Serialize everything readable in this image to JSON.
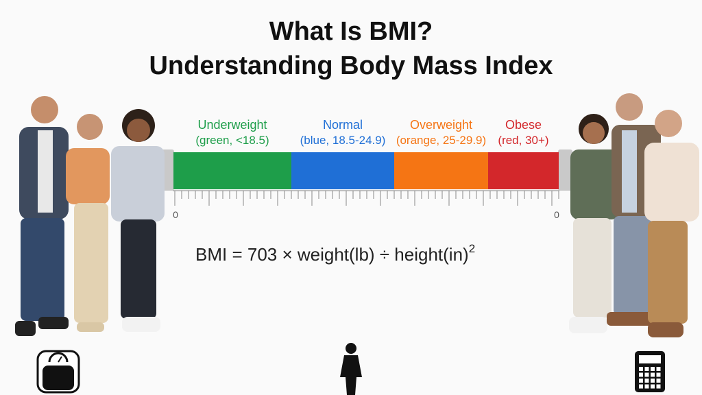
{
  "header": {
    "title_line1": "What Is BMI?",
    "title_line2": "Understanding Body Mass Index"
  },
  "scale": {
    "segments": [
      {
        "name": "Underweight",
        "detail": "(green, <18.5)",
        "color": "#1e9e4a"
      },
      {
        "name": "Normal",
        "detail": "(blue, 18.5-24.9)",
        "color": "#1f6fd6"
      },
      {
        "name": "Overweight",
        "detail": "(orange, 25-29.9)",
        "color": "#f57514"
      },
      {
        "name": "Obese",
        "detail": "(red, 30+)",
        "color": "#d3272b"
      }
    ],
    "left_label": "0",
    "right_label": "0"
  },
  "formula": {
    "text": "BMI = 703 × weight(lb) ÷ height(in)",
    "exponent": "2"
  }
}
